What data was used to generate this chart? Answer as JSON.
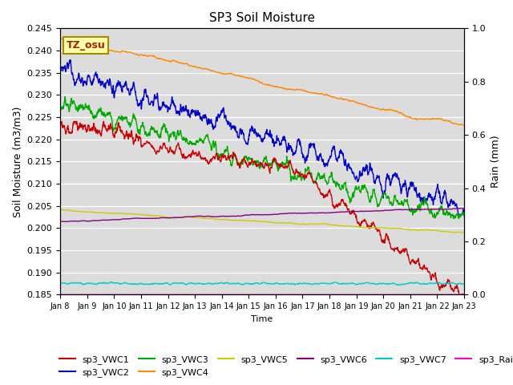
{
  "title": "SP3 Soil Moisture",
  "xlabel": "Time",
  "ylabel_left": "Soil Moisture (m3/m3)",
  "ylabel_right": "Rain (mm)",
  "ylim_left": [
    0.185,
    0.245
  ],
  "ylim_right": [
    0.0,
    1.0
  ],
  "background_color": "#dcdcdc",
  "series": {
    "sp3_VWC1": {
      "color": "#cc0000",
      "lw": 1.0
    },
    "sp3_VWC2": {
      "color": "#0000cc",
      "lw": 1.0
    },
    "sp3_VWC3": {
      "color": "#00aa00",
      "lw": 1.0
    },
    "sp3_VWC4": {
      "color": "#ff8800",
      "lw": 1.0
    },
    "sp3_VWC5": {
      "color": "#cccc00",
      "lw": 1.0
    },
    "sp3_VWC6": {
      "color": "#880088",
      "lw": 1.0
    },
    "sp3_VWC7": {
      "color": "#00cccc",
      "lw": 1.0
    },
    "sp3_Rain": {
      "color": "#ff00bb",
      "lw": 1.0
    }
  },
  "annotation": {
    "text": "TZ_osu",
    "fgcolor": "#aa2200",
    "bgcolor": "#ffffaa",
    "edgecolor": "#aa8800",
    "fontsize": 9,
    "fontweight": "bold"
  }
}
